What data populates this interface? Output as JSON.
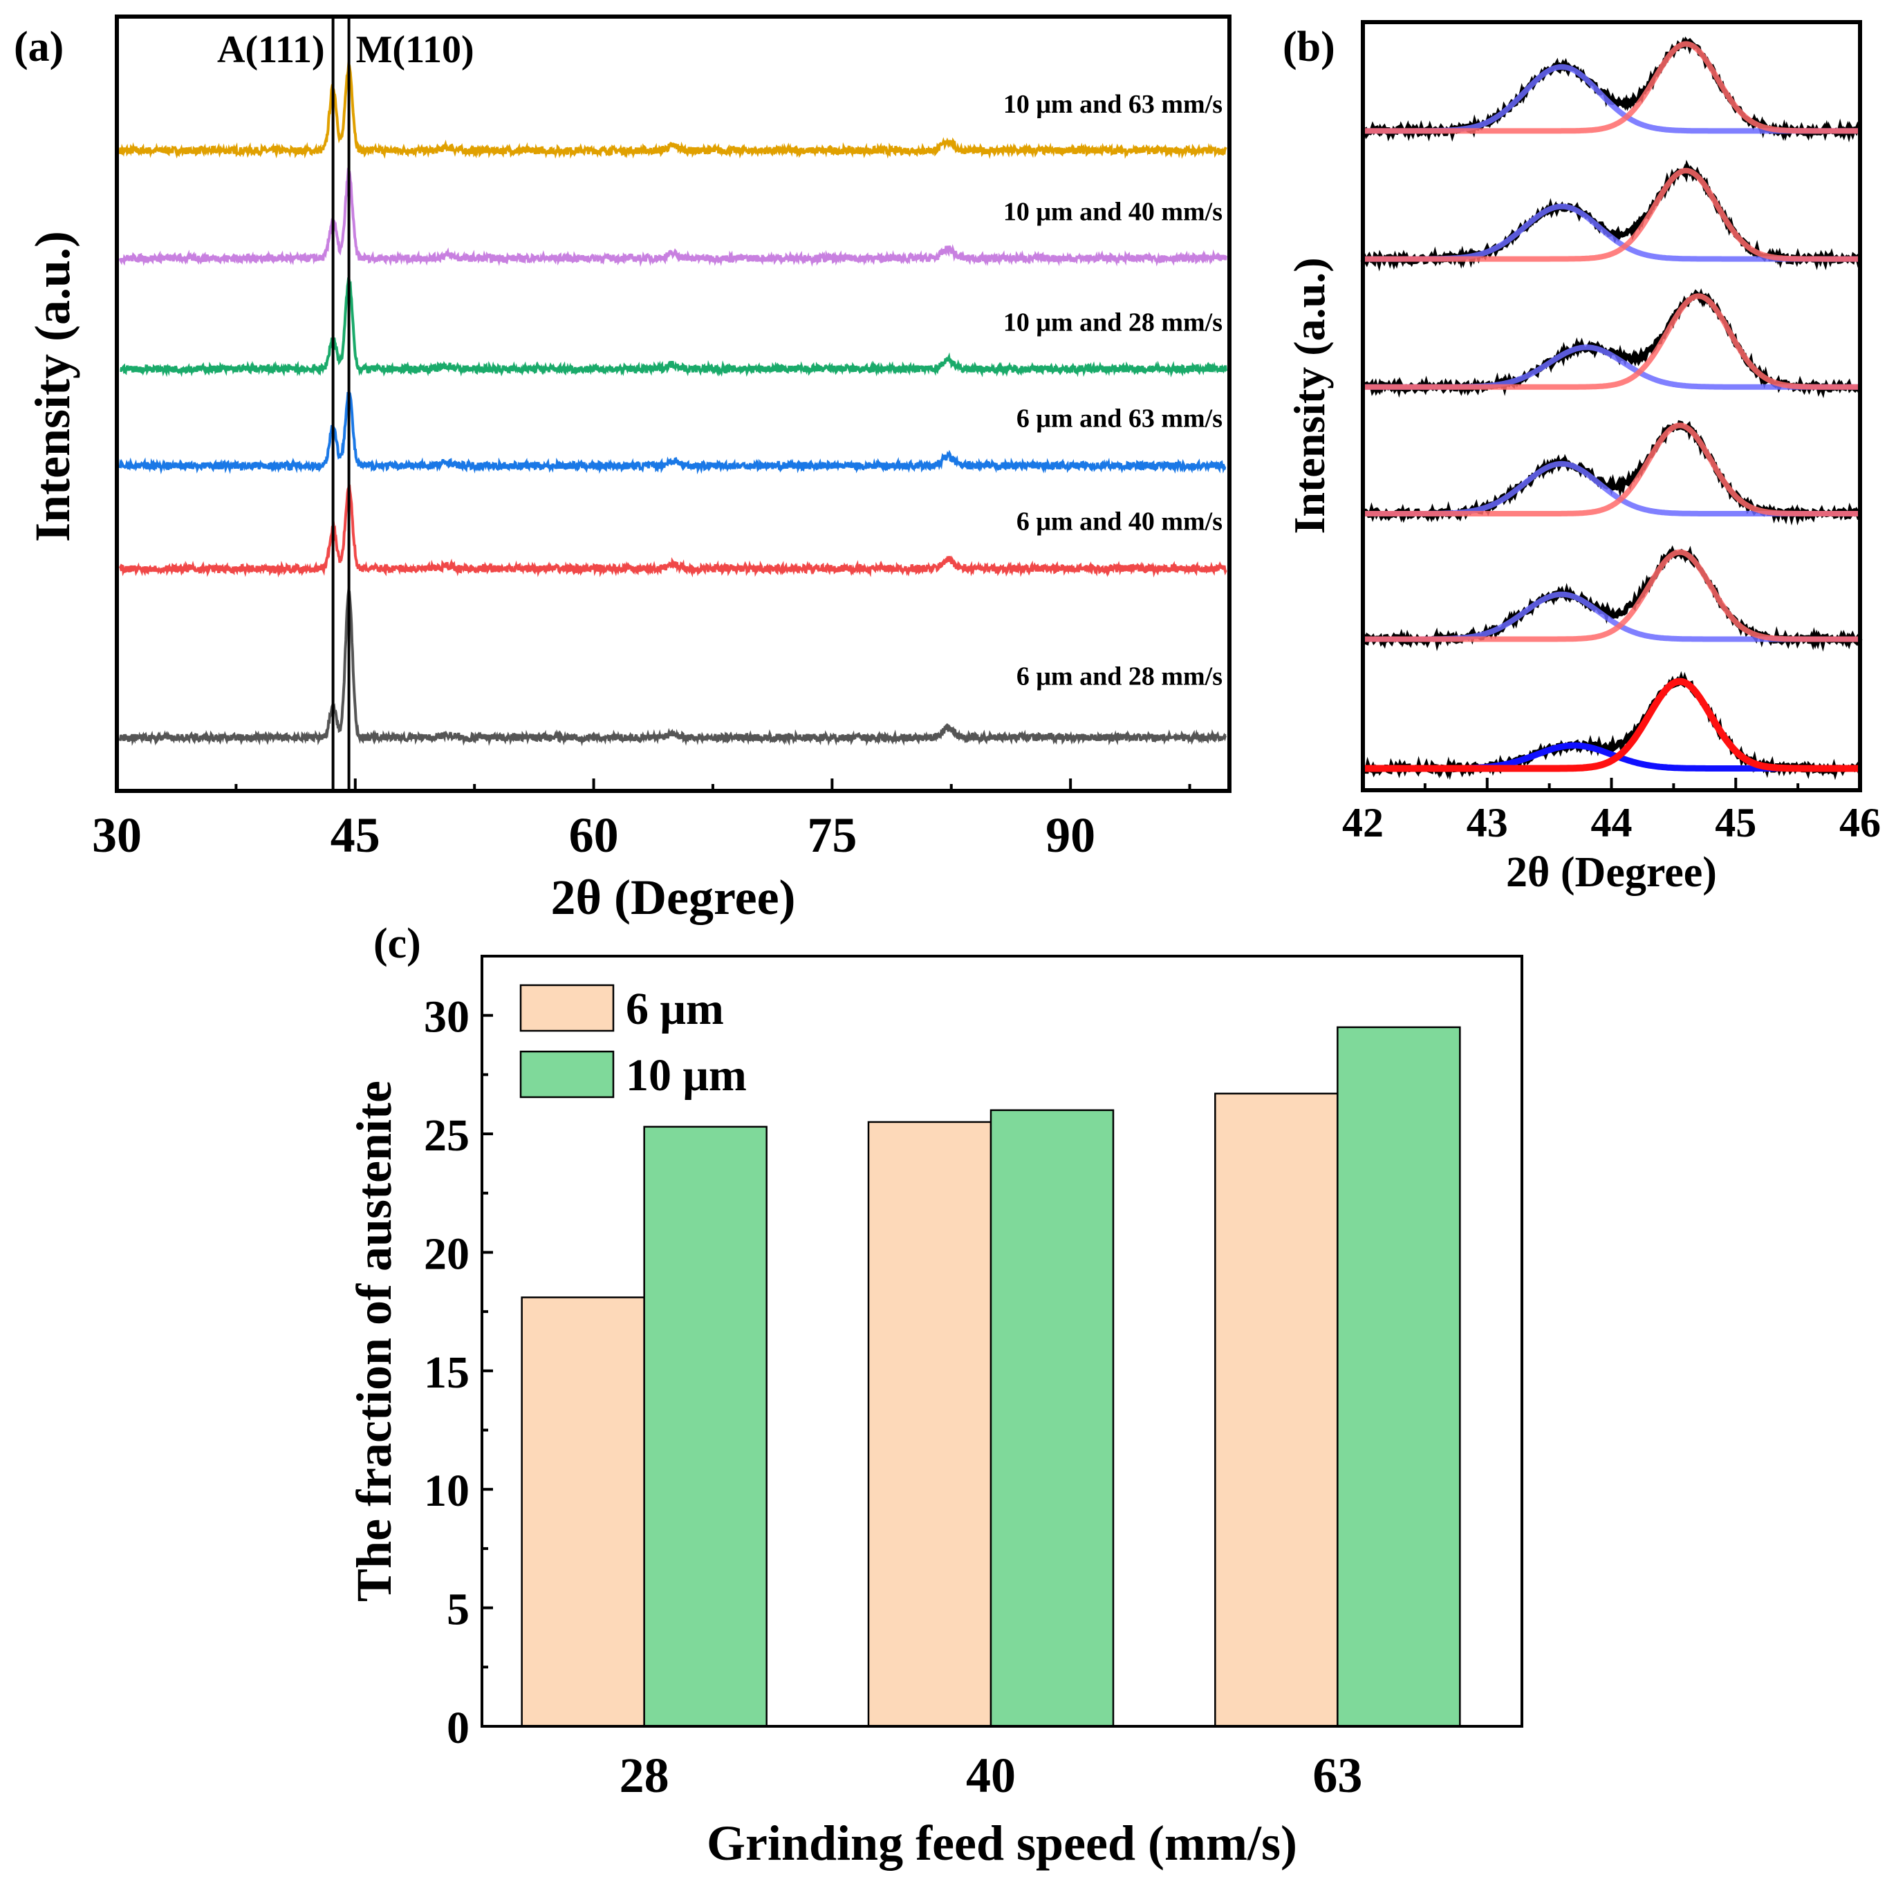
{
  "chart_data": [
    {
      "panel_label": "(a)",
      "type": "line",
      "xlabel": "2θ (Degree)",
      "ylabel": "Intensity (a.u.)",
      "xlim": [
        30,
        100
      ],
      "ylim": [
        0,
        100
      ],
      "xticks": [
        30,
        45,
        60,
        75,
        90
      ],
      "reference_lines": [
        {
          "label": "A(111)",
          "x": 43.6
        },
        {
          "label": "M(110)",
          "x": 44.6
        }
      ],
      "series": [
        {
          "name": "10 μm and 63 mm/s",
          "color": "#e0a000",
          "baseline": 82.7,
          "peak_A": 8.2,
          "peak_M": 10.9
        },
        {
          "name": "10 μm and 40 mm/s",
          "color": "#c880e0",
          "baseline": 68.8,
          "peak_A": 5.0,
          "peak_M": 11.0
        },
        {
          "name": "10 μm and 28 mm/s",
          "color": "#1aaa6a",
          "baseline": 54.5,
          "peak_A": 4.0,
          "peak_M": 11.4
        },
        {
          "name": "6 μm and 63 mm/s",
          "color": "#1a78e6",
          "baseline": 42.0,
          "peak_A": 5.2,
          "peak_M": 9.6
        },
        {
          "name": "6 μm and 40 mm/s",
          "color": "#f04848",
          "baseline": 28.7,
          "peak_A": 5.2,
          "peak_M": 10.5
        },
        {
          "name": "6 μm and 28 mm/s",
          "color": "#555555",
          "baseline": 6.9,
          "peak_A": 4.0,
          "peak_M": 18.7
        }
      ],
      "minor_peaks": [
        {
          "x": 50.8,
          "height": 0.4
        },
        {
          "x": 65.0,
          "height": 0.6
        },
        {
          "x": 82.3,
          "height": 1.2
        }
      ]
    },
    {
      "panel_label": "(b)",
      "type": "line",
      "xlabel": "2θ (Degree)",
      "ylabel": "Intensity (a.u.)",
      "xlim": [
        42,
        46
      ],
      "ylim": [
        0,
        6
      ],
      "xticks": [
        42,
        43,
        44,
        45,
        46
      ],
      "fit_colors": {
        "data": "#000000",
        "austenite": "#6a6aff",
        "martensite": "#ff6a6a",
        "austenite_strong": "#1010ff",
        "martensite_strong": "#ff1010"
      },
      "rows": [
        {
          "baseline": 5.15,
          "A_center": 43.6,
          "A_height": 0.5,
          "M_center": 44.6,
          "M_height": 0.68
        },
        {
          "baseline": 4.15,
          "A_center": 43.6,
          "A_height": 0.41,
          "M_center": 44.6,
          "M_height": 0.69
        },
        {
          "baseline": 3.15,
          "A_center": 43.8,
          "A_height": 0.31,
          "M_center": 44.7,
          "M_height": 0.71
        },
        {
          "baseline": 2.16,
          "A_center": 43.6,
          "A_height": 0.39,
          "M_center": 44.55,
          "M_height": 0.69
        },
        {
          "baseline": 1.18,
          "A_center": 43.6,
          "A_height": 0.35,
          "M_center": 44.55,
          "M_height": 0.68
        },
        {
          "baseline": 0.17,
          "A_center": 43.7,
          "A_height": 0.18,
          "M_center": 44.55,
          "M_height": 0.68,
          "strong": true
        }
      ]
    },
    {
      "panel_label": "(c)",
      "type": "bar",
      "xlabel": "Grinding feed speed (mm/s)",
      "ylabel": "The fraction of austenite",
      "categories": [
        "28",
        "40",
        "63"
      ],
      "ylim": [
        0,
        32.5
      ],
      "yticks": [
        0,
        5,
        10,
        15,
        20,
        25,
        30
      ],
      "legend_position": "top-left",
      "series": [
        {
          "name": "6 μm",
          "color": "#fdd9b9",
          "values": [
            18.1,
            25.5,
            26.7
          ]
        },
        {
          "name": "10 μm",
          "color": "#7fd99a",
          "values": [
            25.3,
            26.0,
            29.5
          ]
        }
      ]
    }
  ]
}
